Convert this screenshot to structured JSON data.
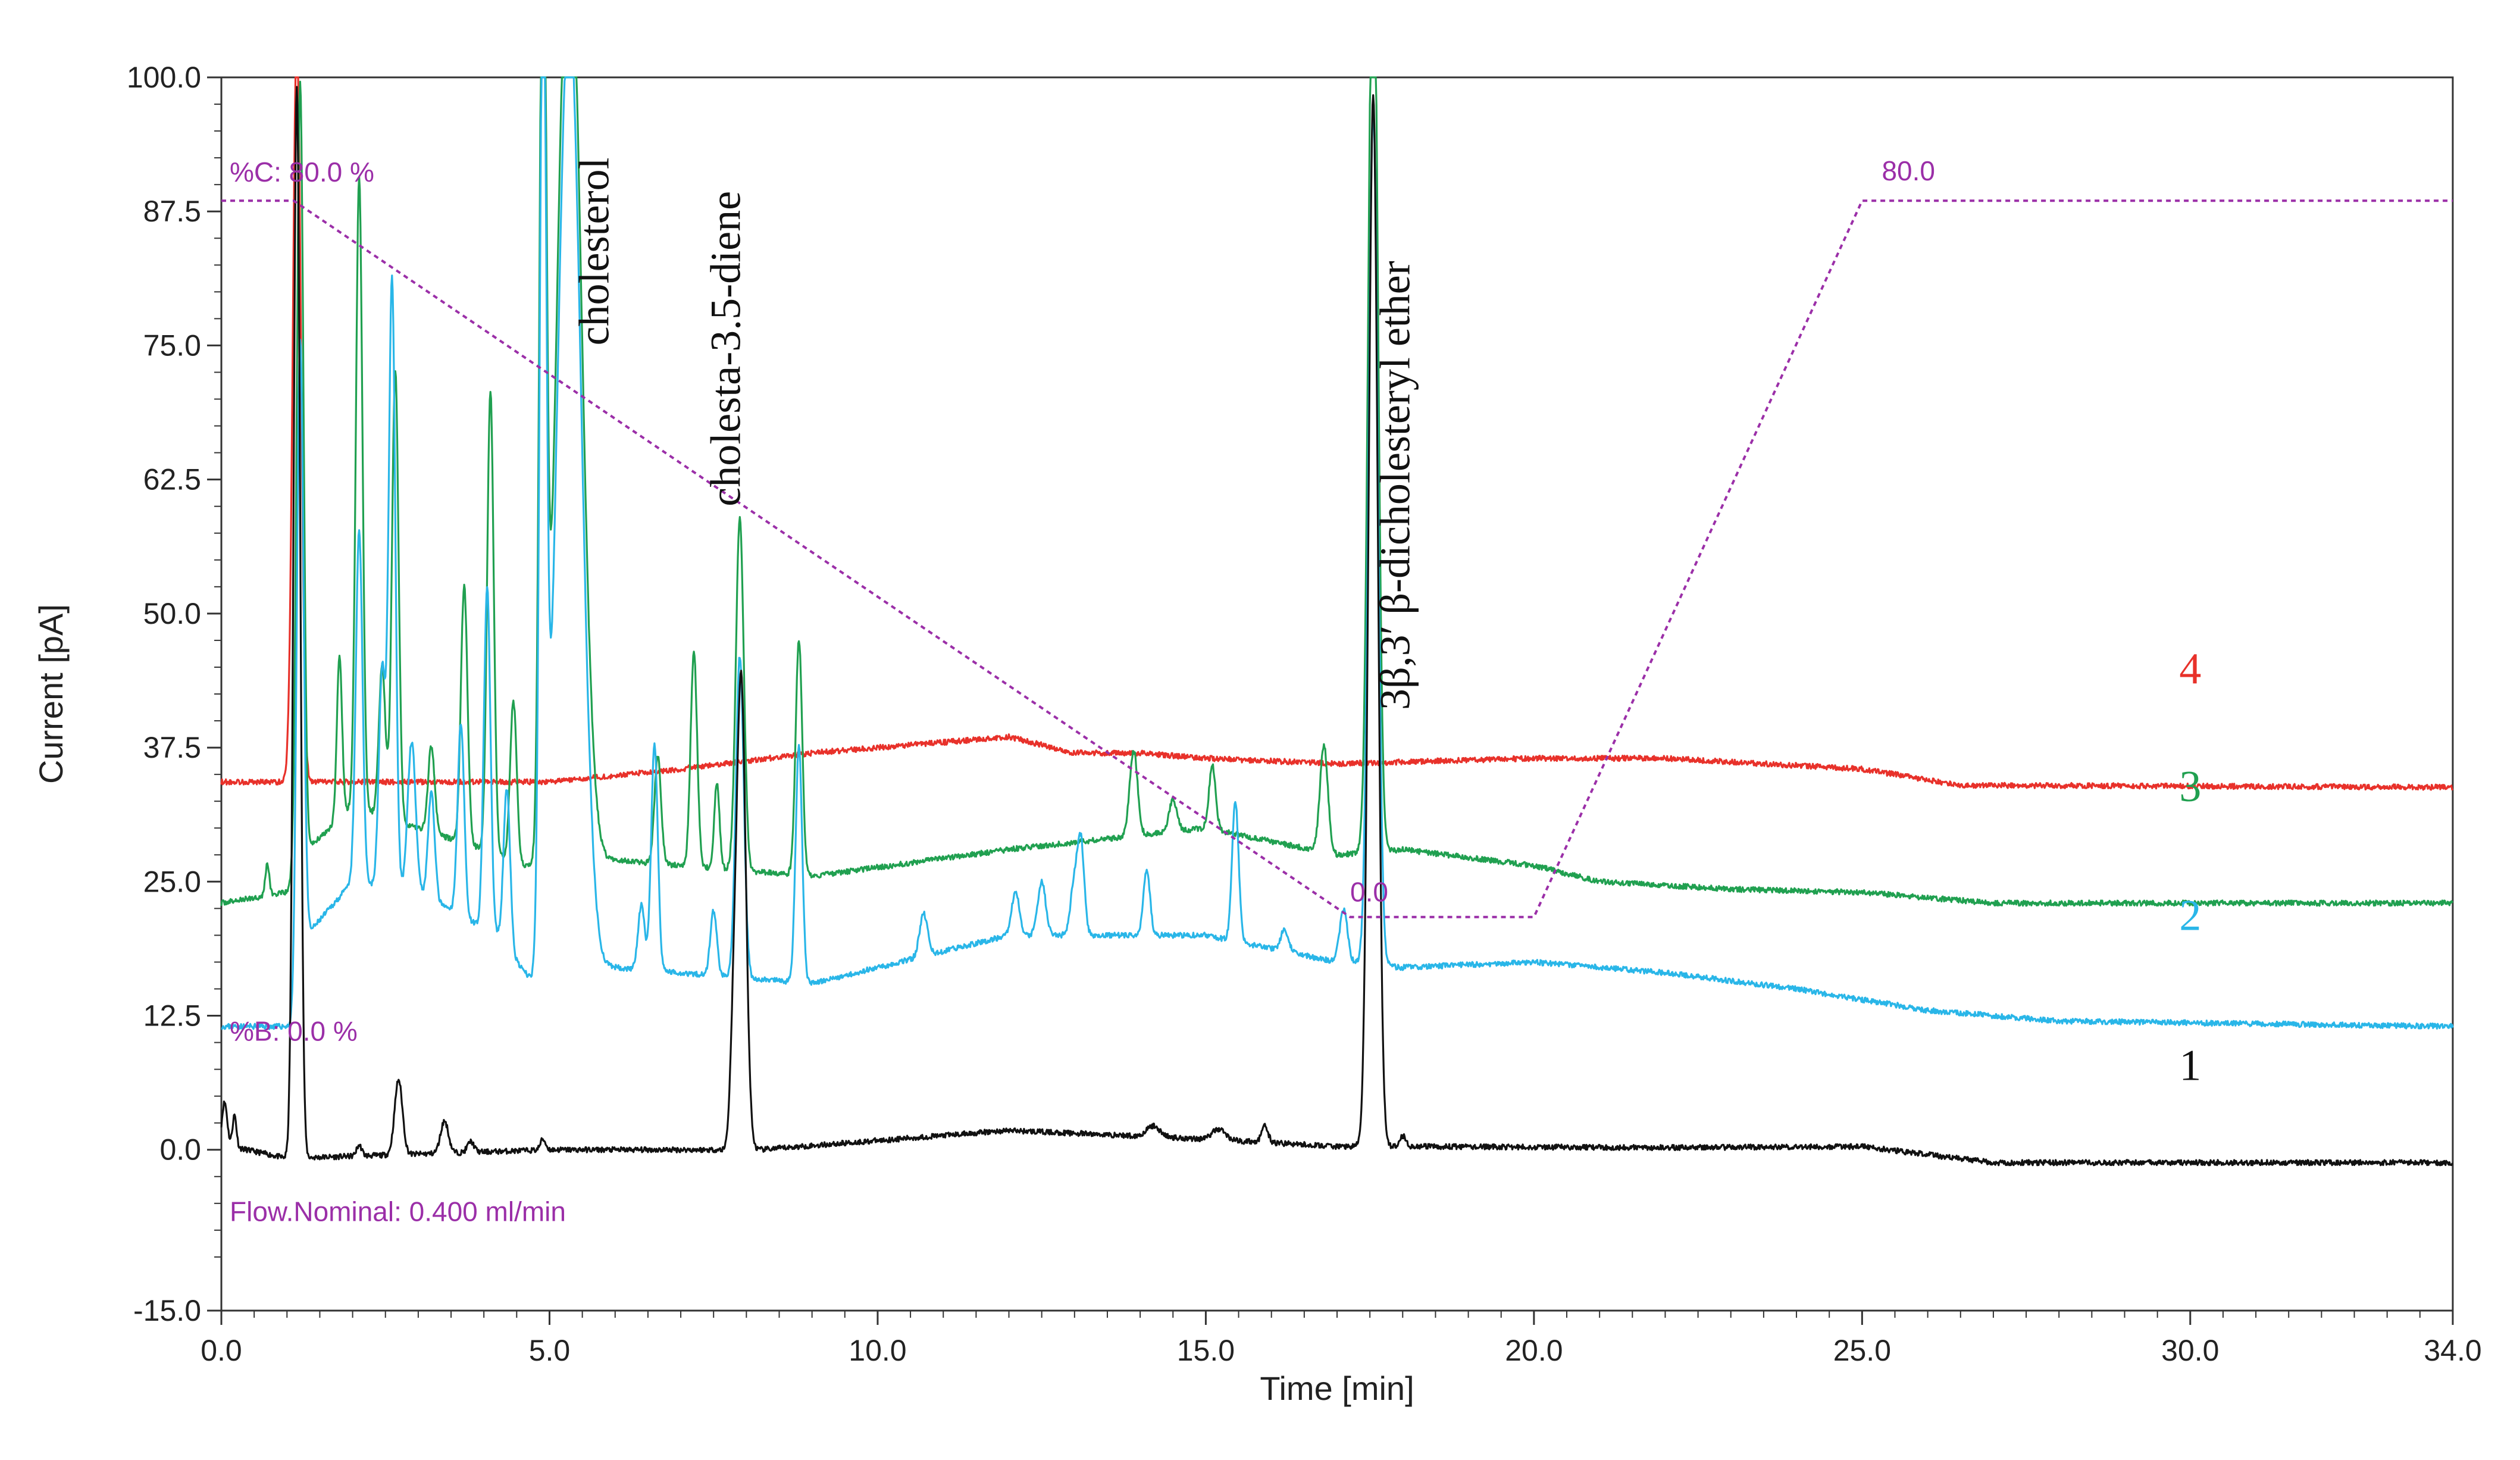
{
  "chart_data": {
    "type": "line",
    "title": "",
    "xlabel": "Time [min]",
    "ylabel": "Current [pA]",
    "xlim": [
      0,
      34
    ],
    "ylim": [
      -15,
      100
    ],
    "x_ticks": [
      0,
      5,
      10,
      15,
      20,
      25,
      30,
      34
    ],
    "x_tick_labels": [
      "0.0",
      "5.0",
      "10.0",
      "15.0",
      "20.0",
      "25.0",
      "30.0",
      "34.0"
    ],
    "y_ticks": [
      -15,
      0,
      12.5,
      25,
      37.5,
      50,
      62.5,
      75,
      87.5,
      100
    ],
    "y_tick_labels": [
      "-15.0",
      "0.0",
      "12.5",
      "25.0",
      "37.5",
      "50.0",
      "62.5",
      "75.0",
      "87.5",
      "100.0"
    ],
    "grid": false,
    "series": [
      {
        "name": "1",
        "color": "#111111",
        "baseline": [
          [
            0,
            0.5
          ],
          [
            1,
            -0.8
          ],
          [
            5,
            0
          ],
          [
            8.2,
            0
          ],
          [
            12,
            1.8
          ],
          [
            15,
            1
          ],
          [
            17,
            0.3
          ],
          [
            18,
            0.3
          ],
          [
            22,
            0.2
          ],
          [
            25,
            0.3
          ],
          [
            27,
            -1.2
          ],
          [
            34,
            -1.2
          ]
        ],
        "peaks": [
          [
            0.05,
            4,
            0.04
          ],
          [
            0.2,
            3,
            0.03
          ],
          [
            1.15,
            100,
            0.05
          ],
          [
            2.1,
            1,
            0.04
          ],
          [
            2.7,
            7,
            0.06
          ],
          [
            3.4,
            3,
            0.06
          ],
          [
            3.8,
            1,
            0.05
          ],
          [
            4.9,
            1,
            0.04
          ],
          [
            7.8,
            8,
            0.05
          ],
          [
            7.92,
            44,
            0.07
          ],
          [
            17.55,
            98,
            0.07
          ],
          [
            18,
            1,
            0.05
          ],
          [
            14.2,
            1,
            0.1
          ],
          [
            15.2,
            1,
            0.1
          ],
          [
            15.9,
            1.5,
            0.05
          ]
        ]
      },
      {
        "name": "2",
        "color": "#29b6e8",
        "baseline": [
          [
            0,
            11.5
          ],
          [
            1.1,
            11.5
          ],
          [
            1.3,
            20
          ],
          [
            2,
            25
          ],
          [
            3,
            24
          ],
          [
            4.2,
            20
          ],
          [
            4.8,
            15
          ],
          [
            5,
            16
          ],
          [
            6,
            17
          ],
          [
            8,
            16
          ],
          [
            9,
            15.5
          ],
          [
            12,
            20
          ],
          [
            15,
            20
          ],
          [
            17,
            17.5
          ],
          [
            18,
            17
          ],
          [
            20,
            17.5
          ],
          [
            22,
            16.5
          ],
          [
            24,
            15
          ],
          [
            26,
            13
          ],
          [
            28,
            12
          ],
          [
            34,
            11.5
          ]
        ],
        "peaks": [
          [
            1.2,
            60,
            0.05
          ],
          [
            2.1,
            33,
            0.05
          ],
          [
            2.45,
            20,
            0.05
          ],
          [
            2.6,
            57,
            0.05
          ],
          [
            2.9,
            14,
            0.06
          ],
          [
            3.2,
            10,
            0.05
          ],
          [
            3.65,
            18,
            0.05
          ],
          [
            4.05,
            32,
            0.05
          ],
          [
            4.35,
            15,
            0.05
          ],
          [
            4.9,
            90,
            0.05
          ],
          [
            5.3,
            90,
            0.18
          ],
          [
            6.6,
            21,
            0.05
          ],
          [
            6.4,
            6,
            0.05
          ],
          [
            7.5,
            6,
            0.05
          ],
          [
            7.9,
            30,
            0.06
          ],
          [
            8.8,
            22,
            0.05
          ],
          [
            10.7,
            4,
            0.06
          ],
          [
            12.1,
            4,
            0.06
          ],
          [
            12.5,
            5,
            0.06
          ],
          [
            13,
            5,
            0.06
          ],
          [
            13.1,
            8,
            0.05
          ],
          [
            14.1,
            6,
            0.05
          ],
          [
            15.45,
            13,
            0.05
          ],
          [
            16.2,
            2,
            0.06
          ],
          [
            17.1,
            5,
            0.06
          ],
          [
            17.55,
            80,
            0.07
          ]
        ]
      },
      {
        "name": "3",
        "color": "#20a050",
        "baseline": [
          [
            0,
            23
          ],
          [
            1,
            24
          ],
          [
            1.3,
            28
          ],
          [
            2,
            32
          ],
          [
            3,
            30
          ],
          [
            4,
            28
          ],
          [
            4.8,
            26
          ],
          [
            5,
            26
          ],
          [
            6,
            27
          ],
          [
            8,
            26
          ],
          [
            9,
            25.5
          ],
          [
            12,
            28
          ],
          [
            15,
            30
          ],
          [
            17,
            27.5
          ],
          [
            18,
            28
          ],
          [
            20,
            26.5
          ],
          [
            21,
            25
          ],
          [
            23,
            24.3
          ],
          [
            25,
            24
          ],
          [
            27,
            23
          ],
          [
            34,
            23
          ]
        ],
        "peaks": [
          [
            0.7,
            3,
            0.03
          ],
          [
            1.2,
            73,
            0.05
          ],
          [
            1.8,
            15,
            0.04
          ],
          [
            2.1,
            59,
            0.05
          ],
          [
            2.45,
            14,
            0.05
          ],
          [
            2.65,
            42,
            0.05
          ],
          [
            3.2,
            8,
            0.05
          ],
          [
            3.7,
            24,
            0.05
          ],
          [
            4.1,
            43,
            0.05
          ],
          [
            4.45,
            15,
            0.05
          ],
          [
            4.9,
            90,
            0.05
          ],
          [
            5.3,
            90,
            0.18
          ],
          [
            6.65,
            10,
            0.05
          ],
          [
            7.2,
            20,
            0.05
          ],
          [
            7.55,
            8,
            0.04
          ],
          [
            7.9,
            33,
            0.06
          ],
          [
            8.8,
            22,
            0.05
          ],
          [
            13.9,
            8,
            0.06
          ],
          [
            14.5,
            3,
            0.06
          ],
          [
            15.1,
            6,
            0.05
          ],
          [
            16.8,
            10,
            0.06
          ],
          [
            17.55,
            90,
            0.07
          ]
        ]
      },
      {
        "name": "4",
        "color": "#e8312a",
        "baseline": [
          [
            0,
            34.3
          ],
          [
            1,
            34.3
          ],
          [
            1.5,
            34.3
          ],
          [
            5,
            34.3
          ],
          [
            7,
            35.5
          ],
          [
            9,
            37
          ],
          [
            12,
            38.5
          ],
          [
            13,
            37
          ],
          [
            14,
            37
          ],
          [
            15,
            36.5
          ],
          [
            17,
            36
          ],
          [
            20,
            36.5
          ],
          [
            22,
            36.5
          ],
          [
            25,
            35.5
          ],
          [
            26.5,
            34
          ],
          [
            34,
            33.8
          ]
        ],
        "peaks": [
          [
            1.15,
            70,
            0.06
          ]
        ]
      }
    ],
    "gradient": {
      "name": "%C",
      "color": "#9b2fa8",
      "points": [
        [
          0,
          88.5
        ],
        [
          1.1,
          88.5
        ],
        [
          17.2,
          21.7
        ],
        [
          20,
          21.7
        ],
        [
          25,
          88.5
        ],
        [
          34,
          88.5
        ]
      ],
      "label_start": "%C: 80.0 %",
      "label_low": "0.0",
      "label_high": "80.0",
      "label_low_at": [
        17.2,
        22.5
      ],
      "label_high_at": [
        25.3,
        89.5
      ]
    },
    "annotations": {
      "percent_b": "%B: 0.0 %",
      "flow": "Flow.Nominal: 0.400 ml/min"
    },
    "peak_labels": [
      {
        "text": "cholesterol",
        "x": 5.9,
        "y": 75
      },
      {
        "text": "cholesta-3.5-diene",
        "x": 7.9,
        "y": 60
      },
      {
        "text": "3β,3′  β-dicholesteryl ether",
        "x": 18.1,
        "y": 41
      }
    ],
    "trace_labels": [
      {
        "text": "4",
        "x": 30,
        "y": 43.5,
        "color": "#e8312a"
      },
      {
        "text": "3",
        "x": 30,
        "y": 32.5,
        "color": "#20a050"
      },
      {
        "text": "2",
        "x": 30,
        "y": 20.5,
        "color": "#29b6e8"
      },
      {
        "text": "1",
        "x": 30,
        "y": 6.5,
        "color": "#111111"
      }
    ]
  }
}
